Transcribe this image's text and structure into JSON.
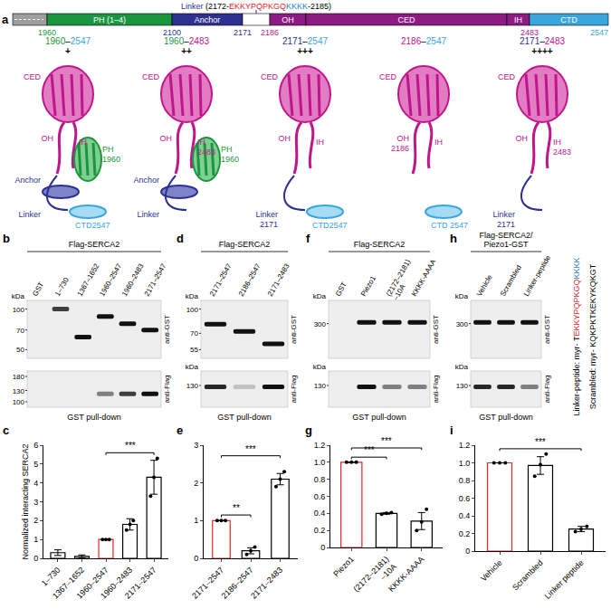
{
  "panel_a": {
    "label": "a",
    "linker": [
      {
        "text": "Linker",
        "color": "#2e3192"
      },
      {
        "text": " (2172-",
        "color": "#000000"
      },
      {
        "text": "EKKYPQPKGQ",
        "color": "#e8242a"
      },
      {
        "text": "KKKK",
        "color": "#2a7fc9"
      },
      {
        "text": "-2185)",
        "color": "#000000"
      }
    ],
    "domains": [
      {
        "color": "#9e9e9e"
      },
      {
        "name": "PH (1–4)",
        "color": "#1a9641"
      },
      {
        "name": "Anchor",
        "color": "#2e3192"
      },
      {
        "color": "#ffffff"
      },
      {
        "name": "OH",
        "color": "#8e1a83"
      },
      {
        "name": "CED",
        "color": "#8e1a83"
      },
      {
        "name": "IH",
        "color": "#8e1a83"
      },
      {
        "name": "CTD",
        "color": "#3aa6dd"
      }
    ],
    "boundaries": [
      {
        "value": 1960,
        "color": "#1a9641"
      },
      {
        "value": 2100,
        "color": "#2e3192"
      },
      {
        "value": 2171,
        "color": "#2e3192"
      },
      {
        "value": 2186,
        "color": "#c0168c"
      },
      {
        "value": 2483,
        "color": "#c0168c"
      },
      {
        "value": 2547,
        "color": "#3aa6dd"
      }
    ],
    "constructs": [
      {
        "name": [
          {
            "text": "1960",
            "color": "#1a9641"
          },
          {
            "text": "–",
            "color": "#000000"
          },
          {
            "text": "2547",
            "color": "#3aa6dd"
          }
        ],
        "sign": "+",
        "domains": [
          1,
          2,
          3,
          4,
          5,
          6,
          7
        ],
        "labels": [
          {
            "text": "CED",
            "domain": 5,
            "color": "#c0168c"
          },
          {
            "text": "OH",
            "domain": 4,
            "color": "#c0168c"
          },
          {
            "text": "IH",
            "domain": 6,
            "color": "#c0168c"
          },
          {
            "text": "PH",
            "domain": 1,
            "color": "#1a9641"
          },
          {
            "text": "1960",
            "domain": 1,
            "color": "#1a9641"
          },
          {
            "text": "Anchor",
            "domain": 2,
            "color": "#2e3192"
          },
          {
            "text": "Linker",
            "domain": 3,
            "color": "#2e3192"
          },
          {
            "text": "CTD2547",
            "domain": 7,
            "color": "#3aa6dd"
          }
        ]
      },
      {
        "name": [
          {
            "text": "1960",
            "color": "#1a9641"
          },
          {
            "text": "–",
            "color": "#000000"
          },
          {
            "text": "2483",
            "color": "#c0168c"
          }
        ],
        "sign": "++",
        "domains": [
          1,
          2,
          3,
          4,
          5,
          6
        ],
        "labels": [
          {
            "text": "CED",
            "domain": 5,
            "color": "#c0168c"
          },
          {
            "text": "OH",
            "domain": 4,
            "color": "#c0168c"
          },
          {
            "text": "IH",
            "domain": 6,
            "color": "#c0168c"
          },
          {
            "text": "2483",
            "domain": 6,
            "color": "#c0168c"
          },
          {
            "text": "PH",
            "domain": 1,
            "color": "#1a9641"
          },
          {
            "text": "1960",
            "domain": 1,
            "color": "#1a9641"
          },
          {
            "text": "Anchor",
            "domain": 2,
            "color": "#2e3192"
          },
          {
            "text": "Linker",
            "domain": 3,
            "color": "#2e3192"
          }
        ]
      },
      {
        "name": [
          {
            "text": "2171",
            "color": "#2e3192"
          },
          {
            "text": "–",
            "color": "#000000"
          },
          {
            "text": "2547",
            "color": "#3aa6dd"
          }
        ],
        "sign": "+++",
        "domains": [
          3,
          4,
          5,
          6,
          7
        ],
        "labels": [
          {
            "text": "CED",
            "domain": 5,
            "color": "#c0168c"
          },
          {
            "text": "OH",
            "domain": 4,
            "color": "#c0168c"
          },
          {
            "text": "IH",
            "domain": 6,
            "color": "#c0168c"
          },
          {
            "text": "Linker",
            "domain": 3,
            "color": "#2e3192"
          },
          {
            "text": "2171",
            "domain": 3,
            "color": "#2e3192"
          },
          {
            "text": "CTD2547",
            "domain": 7,
            "color": "#3aa6dd"
          }
        ]
      },
      {
        "name": [
          {
            "text": "2186",
            "color": "#c0168c"
          },
          {
            "text": "–",
            "color": "#000000"
          },
          {
            "text": "2547",
            "color": "#3aa6dd"
          }
        ],
        "domains": [
          4,
          5,
          6,
          7
        ],
        "labels": [
          {
            "text": "CED",
            "domain": 5,
            "color": "#c0168c"
          },
          {
            "text": "OH",
            "domain": 4,
            "color": "#c0168c"
          },
          {
            "text": "2186",
            "domain": 4,
            "color": "#c0168c"
          },
          {
            "text": "IH",
            "domain": 6,
            "color": "#c0168c"
          },
          {
            "text": "CTD 2547",
            "domain": 7,
            "color": "#3aa6dd"
          }
        ]
      },
      {
        "name": [
          {
            "text": "2171",
            "color": "#2e3192"
          },
          {
            "text": "–",
            "color": "#000000"
          },
          {
            "text": "2483",
            "color": "#c0168c"
          }
        ],
        "sign": "++++",
        "domains": [
          3,
          4,
          5,
          6
        ],
        "labels": [
          {
            "text": "CED",
            "domain": 5,
            "color": "#c0168c"
          },
          {
            "text": "OH",
            "domain": 4,
            "color": "#c0168c"
          },
          {
            "text": "IH",
            "domain": 6,
            "color": "#c0168c"
          },
          {
            "text": "2483",
            "domain": 6,
            "color": "#c0168c"
          },
          {
            "text": "Linker",
            "domain": 3,
            "color": "#2e3192"
          },
          {
            "text": "2171",
            "domain": 3,
            "color": "#2e3192"
          }
        ]
      }
    ]
  },
  "blots": [
    {
      "label": "b",
      "header": "Flag-SERCA2",
      "lanes": [
        "GST",
        "1–730",
        "1367–1652",
        "1960–2547",
        "1960–2483",
        "2171–2547"
      ],
      "top": {
        "unit": "kDa",
        "kda": [
          100,
          70,
          50
        ],
        "antibody": "anti-GST",
        "bands": [
          null,
          {
            "kda": 100,
            "intensity": 0.8
          },
          {
            "kda": 62,
            "intensity": 1
          },
          {
            "kda": 88,
            "intensity": 1
          },
          {
            "kda": 78,
            "intensity": 1
          },
          {
            "kda": 70,
            "intensity": 1
          }
        ]
      },
      "bottom": {
        "kda": [
          180,
          130,
          100
        ],
        "antibody": "anti-Flag",
        "bands": [
          null,
          null,
          null,
          {
            "kda": 120,
            "intensity": 0.5
          },
          {
            "kda": 120,
            "intensity": 0.8
          },
          {
            "kda": 120,
            "intensity": 1
          }
        ]
      },
      "footer": "GST pull-down"
    },
    {
      "label": "d",
      "header": "Flag-SERCA2",
      "lanes": [
        "2171–2547",
        "2186–2547",
        "2171–2483"
      ],
      "top": {
        "unit": "kDa",
        "kda": [
          100,
          70,
          55
        ],
        "antibody": "anti-GST",
        "bands": [
          {
            "kda": 80,
            "intensity": 1
          },
          {
            "kda": 72,
            "intensity": 1
          },
          {
            "kda": 60,
            "intensity": 1
          }
        ]
      },
      "bottom": {
        "unit": "kDa",
        "kda": [
          130
        ],
        "antibody": "anti-Flag",
        "bands": [
          {
            "kda": 125,
            "intensity": 0.9
          },
          {
            "kda": 125,
            "intensity": 0.2
          },
          {
            "kda": 125,
            "intensity": 1
          }
        ]
      },
      "footer": "GST pull-down"
    },
    {
      "label": "f",
      "header": "Flag-SERCA2",
      "lanes": [
        "GST",
        "Piezo1",
        "(2172–2181)\n–10A",
        "KKKK-AAAA"
      ],
      "top": {
        "unit": "kDa",
        "kda": [
          300
        ],
        "antibody": "anti-GST",
        "bands": [
          null,
          {
            "kda": 310,
            "intensity": 1
          },
          {
            "kda": 310,
            "intensity": 1
          },
          {
            "kda": 310,
            "intensity": 1
          }
        ]
      },
      "bottom": {
        "unit": "kDa",
        "kda": [
          130
        ],
        "antibody": "anti-Flag",
        "bands": [
          null,
          {
            "kda": 125,
            "intensity": 1
          },
          {
            "kda": 125,
            "intensity": 0.5
          },
          {
            "kda": 125,
            "intensity": 0.5
          }
        ]
      },
      "footer": "GST pull-down"
    },
    {
      "label": "h",
      "header": "Flag-SERCA2/\nPiezo1-GST",
      "lanes": [
        "Vehicle",
        "Scrambled",
        "Linker-peptide"
      ],
      "top": {
        "unit": "kDa",
        "kda": [
          300
        ],
        "antibody": "anti-GST",
        "bands": [
          {
            "kda": 310,
            "intensity": 1
          },
          {
            "kda": 310,
            "intensity": 1
          },
          {
            "kda": 310,
            "intensity": 1
          }
        ]
      },
      "bottom": {
        "unit": "kDa",
        "kda": [
          130
        ],
        "antibody": "anti-Flag",
        "bands": [
          {
            "kda": 125,
            "intensity": 0.9
          },
          {
            "kda": 125,
            "intensity": 0.9
          },
          {
            "kda": 125,
            "intensity": 0.5
          }
        ]
      },
      "footer": "GST pull-down"
    }
  ],
  "peptides": [
    [
      {
        "text": "Linker-peptide: myr- T",
        "color": "#000000"
      },
      {
        "text": "EKKYPQPKGQ",
        "color": "#e8242a"
      },
      {
        "text": "KKKK",
        "color": "#2a7fc9"
      }
    ],
    [
      {
        "text": "Scrambled: myr- KQKPKTKEKYKQKGT",
        "color": "#000000"
      }
    ]
  ],
  "chart_data": [
    {
      "label": "c",
      "type": "bar",
      "y_label": "Normalized interacting SERCA2",
      "categories": [
        "1–730",
        "1367–1652",
        "1960–2547",
        "1960–2483",
        "2171–2547"
      ],
      "values": [
        0.3,
        0.1,
        1,
        1.8,
        4.3
      ],
      "errors": [
        0.15,
        0.08,
        0,
        0.3,
        0.9
      ],
      "points": [
        [],
        [],
        [
          1,
          1,
          1
        ],
        [
          1.5,
          1.8,
          2.0
        ],
        [
          3.3,
          4.3,
          5.3
        ]
      ],
      "colors": [
        "#000000",
        "#000000",
        "#e8242a",
        "#000000",
        "#000000"
      ],
      "ylim": [
        0,
        6
      ],
      "yticks": [
        0,
        1,
        2,
        3,
        4,
        5,
        6
      ],
      "significance": [
        {
          "from": "1960–2547",
          "to": "2171–2547",
          "label": "***"
        }
      ]
    },
    {
      "label": "e",
      "type": "bar",
      "categories": [
        "2171–2547",
        "2186–2547",
        "2171–2483"
      ],
      "values": [
        1,
        0.2,
        2.1
      ],
      "errors": [
        0,
        0.08,
        0.15
      ],
      "points": [
        [
          1,
          1,
          1
        ],
        [
          0.1,
          0.2,
          0.3
        ],
        [
          1.9,
          2.1,
          2.3
        ]
      ],
      "colors": [
        "#e8242a",
        "#000000",
        "#000000"
      ],
      "ylim": [
        0,
        3
      ],
      "yticks": [
        0,
        1,
        2,
        3
      ],
      "significance": [
        {
          "from": "2171–2547",
          "to": "2186–2547",
          "label": "**"
        },
        {
          "from": "2171–2547",
          "to": "2171–2483",
          "label": "***"
        }
      ]
    },
    {
      "label": "g",
      "type": "bar",
      "categories": [
        "Piezo1",
        "(2172–2181)\n–10A",
        "KKKK-AAAA"
      ],
      "values": [
        1,
        0.4,
        0.31
      ],
      "errors": [
        0,
        0.01,
        0.1
      ],
      "points": [
        [
          1,
          1,
          1
        ],
        [
          0.39,
          0.4,
          0.41
        ],
        [
          0.2,
          0.3,
          0.45
        ]
      ],
      "colors": [
        "#e8242a",
        "#000000",
        "#000000"
      ],
      "ylim": [
        0,
        1.2
      ],
      "yticks": [
        0,
        0.2,
        0.4,
        0.6,
        0.8,
        {
          "value": 1,
          "label": "1.0"
        },
        1.2
      ],
      "significance": [
        {
          "from": "Piezo1",
          "to": "(2172–2181)\n–10A",
          "label": "***"
        },
        {
          "from": "Piezo1",
          "to": "KKKK-AAAA",
          "label": "***"
        }
      ]
    },
    {
      "label": "i",
      "type": "bar",
      "categories": [
        "Vehicle",
        "Scrambled",
        "Linker peptide"
      ],
      "values": [
        1,
        0.97,
        0.25
      ],
      "errors": [
        0,
        0.1,
        0.03
      ],
      "points": [
        [
          1,
          1,
          1
        ],
        [
          0.85,
          0.98,
          1.1
        ],
        [
          0.22,
          0.25,
          0.28
        ]
      ],
      "colors": [
        "#e8242a",
        "#000000",
        "#000000"
      ],
      "ylim": [
        0,
        1.2
      ],
      "yticks": [
        0,
        0.2,
        0.4,
        0.6,
        0.8,
        {
          "value": 1,
          "label": "1.0"
        },
        1.2
      ],
      "significance": [
        {
          "from": "Vehicle",
          "to": "Linker peptide",
          "label": "***"
        }
      ]
    }
  ]
}
